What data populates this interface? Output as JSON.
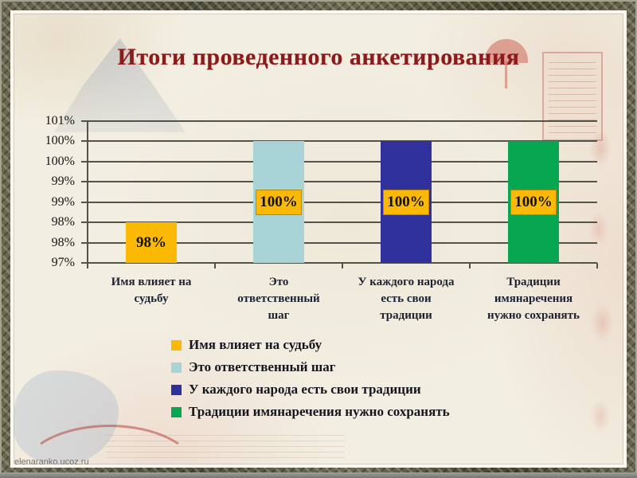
{
  "slide": {
    "title": "Итоги проведенного анкетирования",
    "watermark": "elenaranko.ucoz.ru"
  },
  "chart_data": {
    "type": "bar",
    "title": "Итоги проведенного анкетирования",
    "categories": [
      "Имя влияет на судьбу",
      "Это ответственный шаг",
      "У каждого народа есть свои традиции",
      "Традиции имянаречения нужно сохранять"
    ],
    "category_lines": [
      [
        "Имя влияет на",
        "судьбу"
      ],
      [
        "Это",
        "ответственный",
        "шаг"
      ],
      [
        "У каждого народа",
        "есть свои",
        "традиции"
      ],
      [
        "Традиции",
        "имянаречения",
        "нужно сохранять"
      ]
    ],
    "values": [
      98,
      100,
      100,
      100
    ],
    "data_labels": [
      "98%",
      "100%",
      "100%",
      "100%"
    ],
    "bar_colors": [
      "#FBB903",
      "#A8D4D8",
      "#31319E",
      "#07A650"
    ],
    "label_bg": "#FBB903",
    "label_border": "rgba(130,85,0,0.5)",
    "ylim": [
      97,
      100.5
    ],
    "ytick_labels": [
      "101%",
      "100%",
      "100%",
      "99%",
      "99%",
      "98%",
      "98%",
      "97%"
    ],
    "grid": true,
    "axis_color": "#53534a",
    "legend_position": "bottom",
    "legend": [
      {
        "color": "#FBB903",
        "label": "Имя влияет на судьбу"
      },
      {
        "color": "#A8D4D8",
        "label": "Это ответственный  шаг"
      },
      {
        "color": "#31319E",
        "label": "У каждого народа есть свои традиции"
      },
      {
        "color": "#07A650",
        "label": "Традиции имянаречения нужно сохранять"
      }
    ]
  }
}
